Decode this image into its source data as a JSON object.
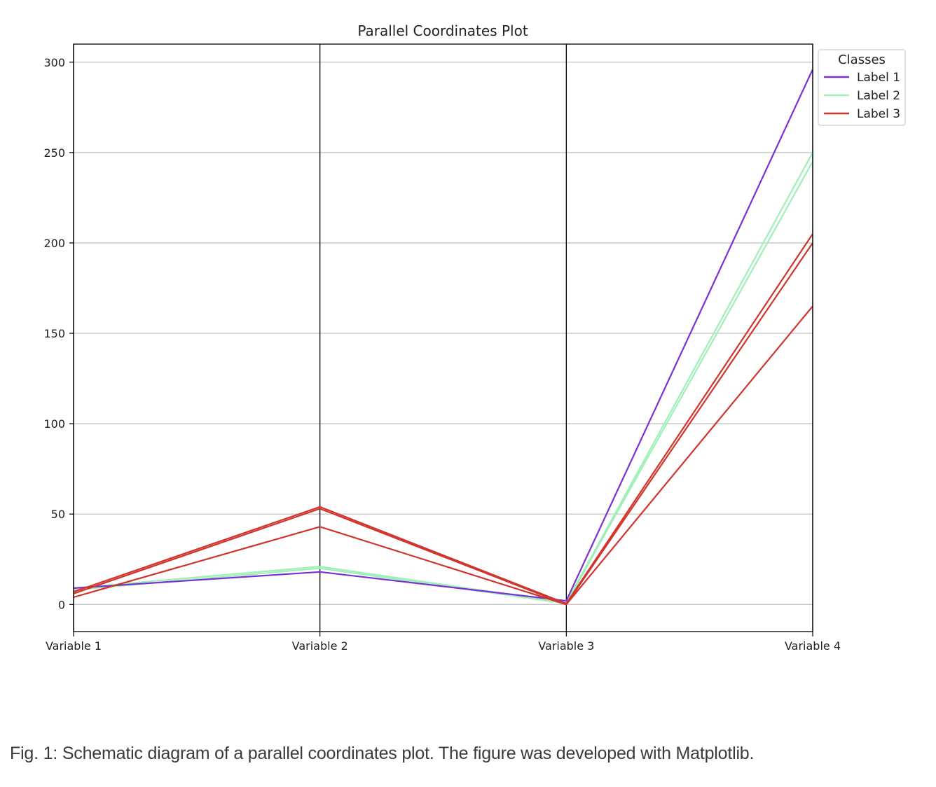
{
  "chart_data": {
    "type": "parallel_coordinates",
    "title": "Parallel Coordinates Plot",
    "dimensions": [
      "Variable 1",
      "Variable 2",
      "Variable 3",
      "Variable 4"
    ],
    "ylim": [
      -15,
      310
    ],
    "yticks": [
      0,
      50,
      100,
      150,
      200,
      250,
      300
    ],
    "grid": true,
    "legend": {
      "title": "Classes",
      "placement": "outside top-right",
      "entries": [
        {
          "name": "Label 1",
          "color": "#7b2fd6"
        },
        {
          "name": "Label 2",
          "color": "#9ff0b7"
        },
        {
          "name": "Label 3",
          "color": "#d0342c"
        }
      ]
    },
    "series": [
      {
        "name": "Label 2",
        "color": "#9ff0b7",
        "lines": [
          [
            9,
            21,
            1,
            250
          ],
          [
            8,
            20,
            0.5,
            245
          ]
        ]
      },
      {
        "name": "Label 1",
        "color": "#7b2fd6",
        "lines": [
          [
            9,
            18,
            2,
            296
          ]
        ]
      },
      {
        "name": "Label 3",
        "color": "#d0342c",
        "lines": [
          [
            7,
            54,
            0.5,
            205
          ],
          [
            6,
            53,
            0,
            200
          ],
          [
            4,
            43,
            0,
            165
          ]
        ]
      }
    ]
  },
  "caption": "Fig. 1: Schematic diagram of a parallel coordinates plot. The figure was developed with Matplotlib."
}
